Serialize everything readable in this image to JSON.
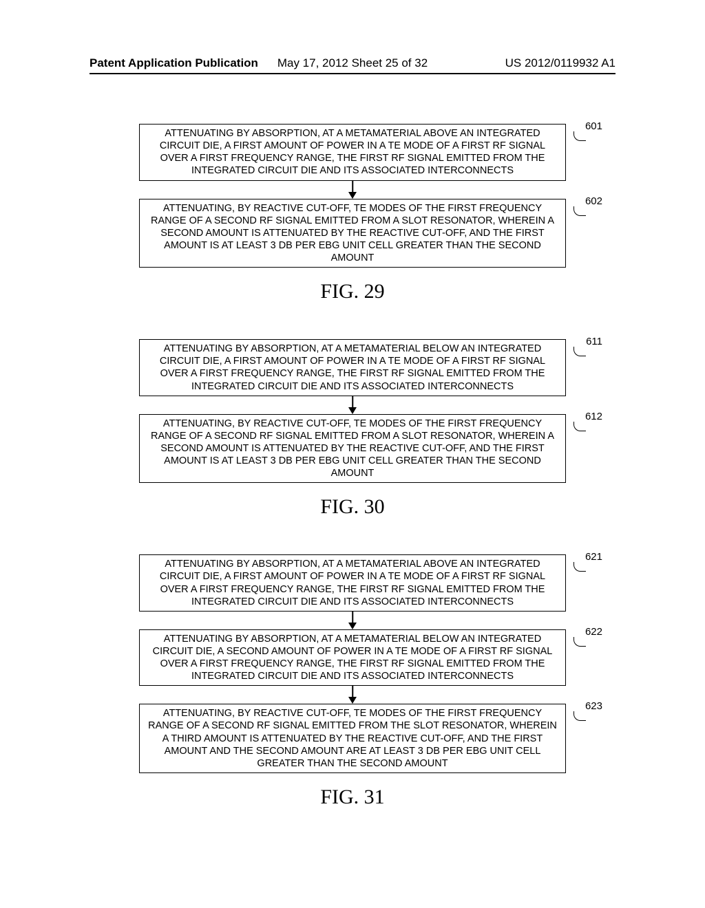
{
  "header": {
    "left": "Patent Application Publication",
    "center": "May 17, 2012  Sheet 25 of 32",
    "right": "US 2012/0119932 A1"
  },
  "figures": [
    {
      "label": "FIG. 29",
      "boxes": [
        {
          "ref": "601",
          "text": "ATTENUATING BY ABSORPTION, AT A METAMATERIAL ABOVE AN INTEGRATED CIRCUIT DIE, A FIRST AMOUNT OF POWER IN A TE MODE OF A FIRST RF SIGNAL OVER A FIRST FREQUENCY RANGE, THE FIRST RF SIGNAL EMITTED FROM THE INTEGRATED CIRCUIT DIE AND ITS ASSOCIATED INTERCONNECTS"
        },
        {
          "ref": "602",
          "text": "ATTENUATING, BY REACTIVE CUT-OFF, TE MODES OF THE FIRST FREQUENCY RANGE OF A SECOND RF SIGNAL EMITTED FROM A SLOT RESONATOR, WHEREIN A SECOND AMOUNT IS ATTENUATED BY THE REACTIVE CUT-OFF, AND THE FIRST AMOUNT IS AT LEAST 3 DB PER EBG UNIT CELL GREATER THAN THE SECOND AMOUNT"
        }
      ]
    },
    {
      "label": "FIG. 30",
      "boxes": [
        {
          "ref": "611",
          "text": "ATTENUATING BY ABSORPTION, AT A METAMATERIAL BELOW AN INTEGRATED CIRCUIT DIE, A FIRST AMOUNT OF POWER IN A TE MODE OF A FIRST RF SIGNAL OVER A FIRST FREQUENCY RANGE, THE FIRST RF SIGNAL EMITTED FROM THE INTEGRATED CIRCUIT DIE AND ITS ASSOCIATED INTERCONNECTS"
        },
        {
          "ref": "612",
          "text": "ATTENUATING, BY REACTIVE CUT-OFF, TE MODES OF THE FIRST FREQUENCY RANGE OF A SECOND RF SIGNAL EMITTED FROM A SLOT RESONATOR, WHEREIN A SECOND AMOUNT IS ATTENUATED BY THE REACTIVE CUT-OFF, AND THE FIRST AMOUNT IS AT LEAST 3 DB PER EBG UNIT CELL GREATER THAN THE SECOND AMOUNT"
        }
      ]
    },
    {
      "label": "FIG. 31",
      "boxes": [
        {
          "ref": "621",
          "text": "ATTENUATING BY ABSORPTION, AT A METAMATERIAL ABOVE AN INTEGRATED CIRCUIT DIE, A FIRST AMOUNT OF POWER IN A TE MODE OF A FIRST RF SIGNAL OVER A FIRST FREQUENCY RANGE, THE FIRST RF SIGNAL EMITTED FROM THE INTEGRATED CIRCUIT DIE AND ITS ASSOCIATED INTERCONNECTS"
        },
        {
          "ref": "622",
          "text": "ATTENUATING BY ABSORPTION, AT A METAMATERIAL BELOW AN INTEGRATED CIRCUIT DIE, A SECOND AMOUNT OF POWER IN A TE MODE OF A FIRST RF SIGNAL OVER A FIRST FREQUENCY RANGE, THE FIRST RF SIGNAL EMITTED FROM THE INTEGRATED CIRCUIT DIE AND ITS ASSOCIATED INTERCONNECTS"
        },
        {
          "ref": "623",
          "text": "ATTENUATING, BY REACTIVE CUT-OFF, TE MODES OF THE FIRST FREQUENCY RANGE OF A SECOND RF SIGNAL EMITTED FROM THE SLOT RESONATOR, WHEREIN A THIRD AMOUNT IS ATTENUATED BY THE REACTIVE CUT-OFF, AND THE FIRST AMOUNT AND THE SECOND AMOUNT ARE AT LEAST 3 DB PER EBG UNIT CELL GREATER THAN THE SECOND AMOUNT"
        }
      ]
    }
  ]
}
